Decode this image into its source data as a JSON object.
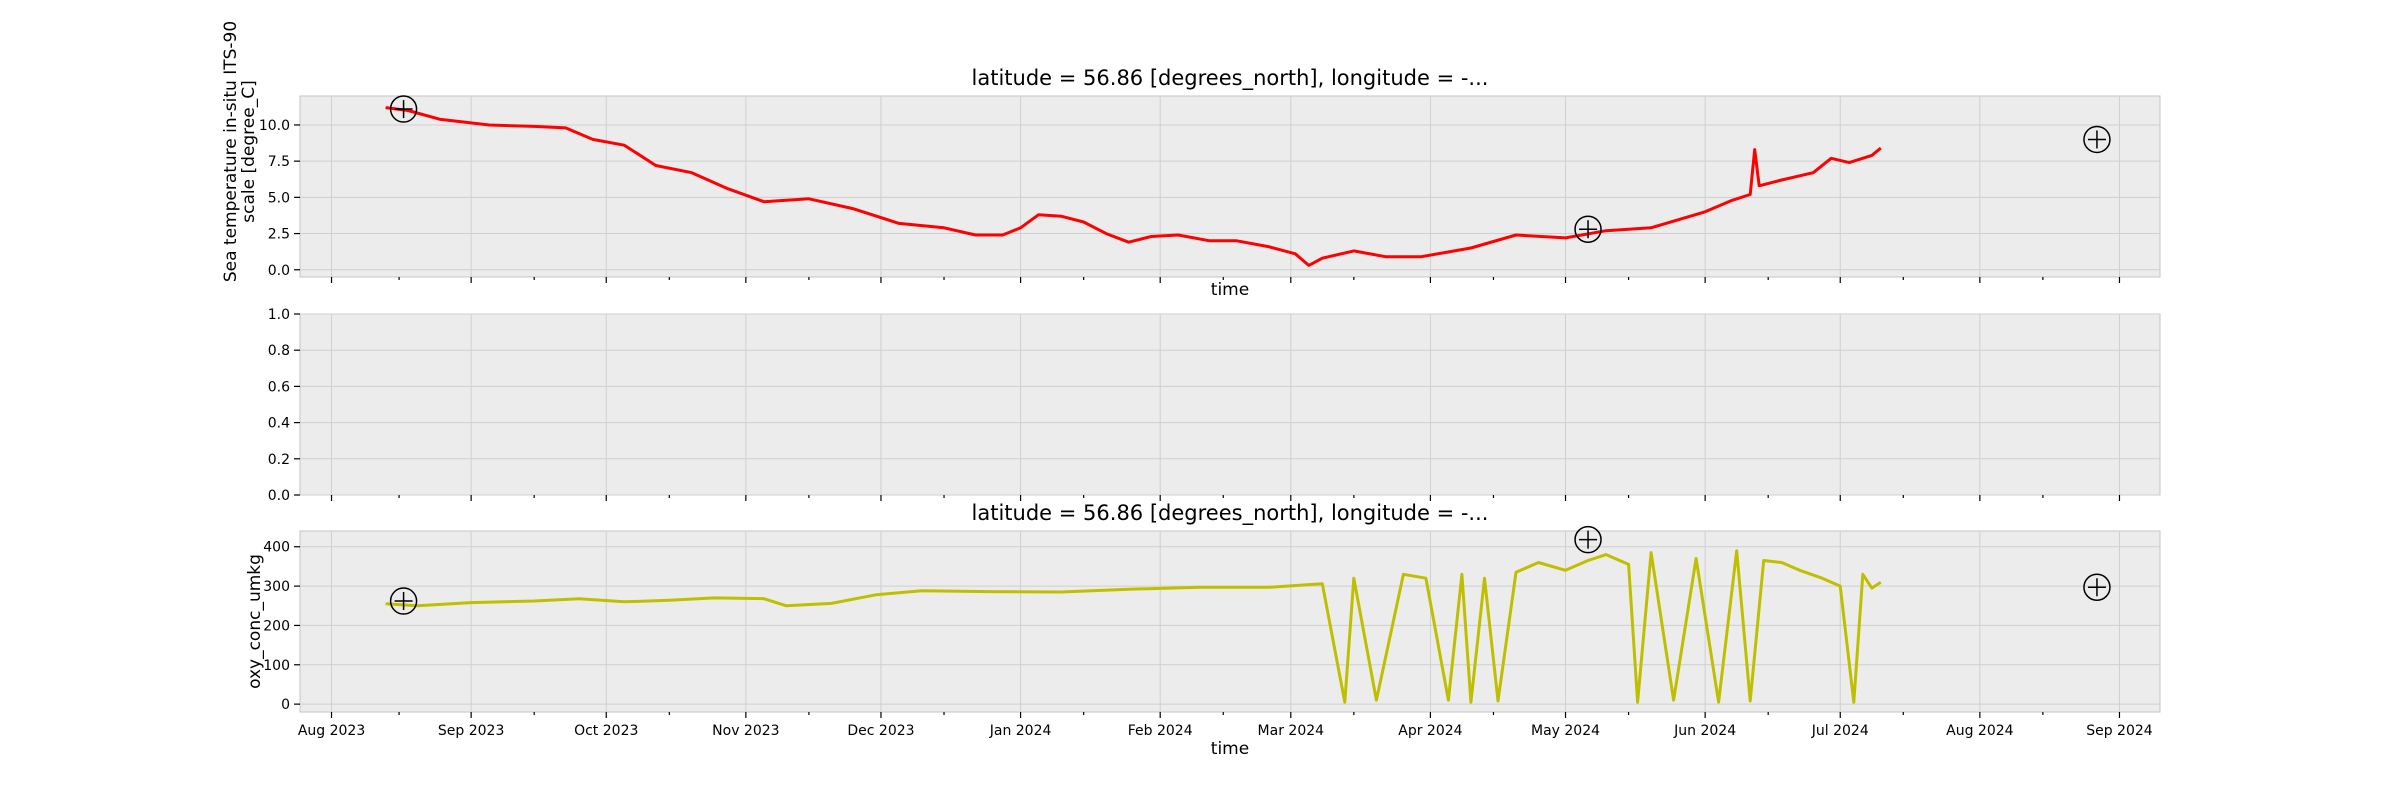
{
  "chart_data": [
    {
      "type": "line",
      "title": "latitude = 56.86 [degrees_north], longitude = -...",
      "xlabel": "time",
      "ylabel": "Sea temperature in-situ ITS-90 scale [degree_C]",
      "ylabel_lines": [
        "Sea temperature in-situ ITS-90",
        "scale [degree_C]"
      ],
      "x_tick_labels_visible": false,
      "xlim": [
        "2023-07-25",
        "2024-09-10"
      ],
      "ylim": [
        -0.5,
        12
      ],
      "yticks": [
        0.0,
        2.5,
        5.0,
        7.5,
        10.0
      ],
      "ytick_labels": [
        "0.0",
        "2.5",
        "5.0",
        "7.5",
        "10.0"
      ],
      "grid": true,
      "series": [
        {
          "color": "#ff0000",
          "x": [
            "2023-08-13",
            "2023-08-18",
            "2023-08-25",
            "2023-09-05",
            "2023-09-15",
            "2023-09-22",
            "2023-09-28",
            "2023-10-05",
            "2023-10-12",
            "2023-10-20",
            "2023-10-28",
            "2023-11-05",
            "2023-11-15",
            "2023-11-25",
            "2023-12-05",
            "2023-12-15",
            "2023-12-22",
            "2023-12-28",
            "2024-01-01",
            "2024-01-05",
            "2024-01-10",
            "2024-01-15",
            "2024-01-20",
            "2024-01-25",
            "2024-01-30",
            "2024-02-05",
            "2024-02-12",
            "2024-02-18",
            "2024-02-25",
            "2024-03-02",
            "2024-03-05",
            "2024-03-08",
            "2024-03-15",
            "2024-03-22",
            "2024-03-30",
            "2024-04-10",
            "2024-04-20",
            "2024-05-01",
            "2024-05-10",
            "2024-05-20",
            "2024-06-01",
            "2024-06-07",
            "2024-06-11",
            "2024-06-12",
            "2024-06-13",
            "2024-06-18",
            "2024-06-25",
            "2024-06-29",
            "2024-07-03",
            "2024-07-08",
            "2024-07-10"
          ],
          "y": [
            11.2,
            11.0,
            10.4,
            10.0,
            9.9,
            9.8,
            9.0,
            8.6,
            7.2,
            6.7,
            5.6,
            4.7,
            4.9,
            4.2,
            3.2,
            2.9,
            2.4,
            2.4,
            2.9,
            3.8,
            3.7,
            3.3,
            2.5,
            1.9,
            2.3,
            2.4,
            2.0,
            2.0,
            1.6,
            1.1,
            0.3,
            0.8,
            1.3,
            0.9,
            0.9,
            1.5,
            2.4,
            2.2,
            2.7,
            2.9,
            4.0,
            4.8,
            5.2,
            8.3,
            5.8,
            6.2,
            6.7,
            7.7,
            7.4,
            7.9,
            8.4
          ]
        }
      ],
      "markers": [
        {
          "x": "2023-08-17",
          "y": 11.1
        },
        {
          "x": "2024-05-06",
          "y": 2.8
        },
        {
          "x": "2024-08-27",
          "y": 9.0
        }
      ]
    },
    {
      "type": "line",
      "title": "",
      "xlabel": "",
      "ylabel": "",
      "x_tick_labels_visible": false,
      "xlim": [
        "2023-07-25",
        "2024-09-10"
      ],
      "ylim": [
        0.0,
        1.0
      ],
      "yticks": [
        0.0,
        0.2,
        0.4,
        0.6,
        0.8,
        1.0
      ],
      "ytick_labels": [
        "0.0",
        "0.2",
        "0.4",
        "0.6",
        "0.8",
        "1.0"
      ],
      "grid": true,
      "series": []
    },
    {
      "type": "line",
      "title": "latitude = 56.86 [degrees_north], longitude = -...",
      "xlabel": "time",
      "ylabel": "oxy_conc_umkg",
      "x_tick_labels_visible": true,
      "xlim": [
        "2023-07-25",
        "2024-09-10"
      ],
      "ylim": [
        -20,
        440
      ],
      "yticks": [
        0,
        100,
        200,
        300,
        400
      ],
      "ytick_labels": [
        "0",
        "100",
        "200",
        "300",
        "400"
      ],
      "grid": true,
      "xticks": [
        "2023-08-01",
        "2023-09-01",
        "2023-10-01",
        "2023-11-01",
        "2023-12-01",
        "2024-01-01",
        "2024-02-01",
        "2024-03-01",
        "2024-04-01",
        "2024-05-01",
        "2024-06-01",
        "2024-07-01",
        "2024-08-01",
        "2024-09-01"
      ],
      "xtick_labels": [
        "Aug 2023",
        "Sep 2023",
        "Oct 2023",
        "Nov 2023",
        "Dec 2023",
        "Jan 2024",
        "Feb 2024",
        "Mar 2024",
        "Apr 2024",
        "May 2024",
        "Jun 2024",
        "Jul 2024",
        "Aug 2024",
        "Sep 2024"
      ],
      "series": [
        {
          "color": "#bfbf00",
          "x": [
            "2023-08-13",
            "2023-08-20",
            "2023-09-01",
            "2023-09-15",
            "2023-09-25",
            "2023-10-05",
            "2023-10-15",
            "2023-10-25",
            "2023-11-05",
            "2023-11-10",
            "2023-11-20",
            "2023-11-30",
            "2023-12-10",
            "2023-12-25",
            "2024-01-10",
            "2024-01-25",
            "2024-02-10",
            "2024-02-25",
            "2024-03-03",
            "2024-03-08",
            "2024-03-13",
            "2024-03-15",
            "2024-03-20",
            "2024-03-26",
            "2024-03-31",
            "2024-04-05",
            "2024-04-08",
            "2024-04-10",
            "2024-04-13",
            "2024-04-16",
            "2024-04-20",
            "2024-04-25",
            "2024-05-01",
            "2024-05-06",
            "2024-05-10",
            "2024-05-15",
            "2024-05-17",
            "2024-05-20",
            "2024-05-25",
            "2024-05-30",
            "2024-06-04",
            "2024-06-08",
            "2024-06-11",
            "2024-06-14",
            "2024-06-18",
            "2024-06-22",
            "2024-06-27",
            "2024-07-01",
            "2024-07-04",
            "2024-07-06",
            "2024-07-08",
            "2024-07-10"
          ],
          "y": [
            255,
            250,
            258,
            262,
            268,
            260,
            264,
            270,
            268,
            250,
            256,
            278,
            288,
            286,
            285,
            292,
            297,
            297,
            302,
            306,
            5,
            320,
            10,
            330,
            320,
            10,
            330,
            5,
            320,
            8,
            335,
            360,
            340,
            365,
            380,
            355,
            5,
            385,
            10,
            370,
            5,
            390,
            8,
            365,
            360,
            340,
            320,
            300,
            5,
            330,
            295,
            310
          ]
        }
      ],
      "markers": [
        {
          "x": "2023-08-17",
          "y": 262
        },
        {
          "x": "2024-05-06",
          "y": 418
        },
        {
          "x": "2024-08-27",
          "y": 297
        }
      ]
    }
  ]
}
